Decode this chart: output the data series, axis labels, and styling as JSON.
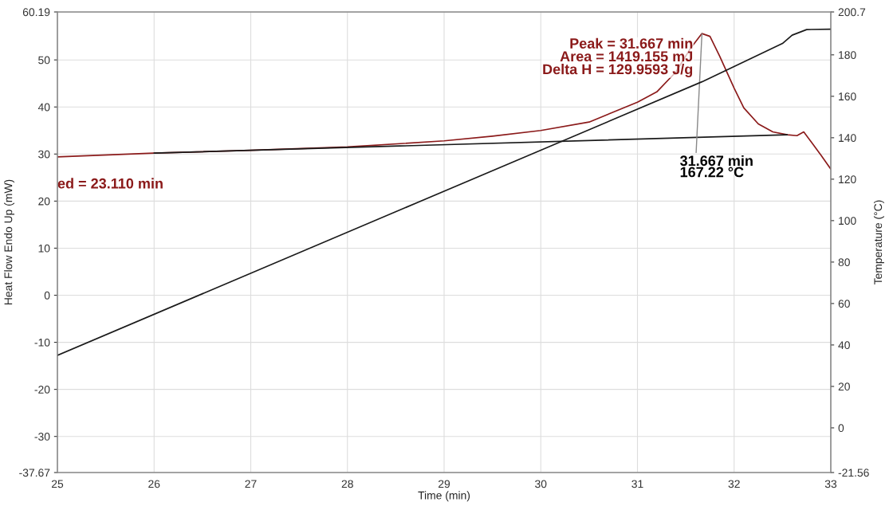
{
  "chart_data": {
    "type": "line",
    "xlabel": "Time (min)",
    "ylabel": "Heat Flow Endo Up (mW)",
    "y2label": "Temperature (°C)",
    "xlim": [
      25,
      33
    ],
    "xticks": [
      25,
      26,
      27,
      28,
      29,
      30,
      31,
      32,
      33
    ],
    "ylim": [
      -37.67,
      60.19
    ],
    "yticks": [
      -37.67,
      -30,
      -20,
      -10,
      0,
      10,
      20,
      30,
      40,
      50,
      60.19
    ],
    "y2lim": [
      -21.56,
      200.7
    ],
    "y2ticks": [
      -21.56,
      0,
      20,
      40,
      60,
      80,
      100,
      120,
      140,
      160,
      180,
      200.7
    ],
    "grid": true,
    "series": [
      {
        "color": "#8b1a1a",
        "x": [
          25,
          26,
          27,
          28,
          29,
          29.5,
          30,
          30.5,
          31,
          31.2,
          31.4,
          31.55,
          31.667,
          31.75,
          31.85,
          32,
          32.1,
          32.25,
          32.4,
          32.55,
          32.65,
          32.72,
          32.8,
          32.9,
          33
        ],
        "values": [
          29.4,
          30.2,
          30.8,
          31.5,
          32.8,
          33.8,
          35,
          36.8,
          41,
          43.2,
          47.5,
          52.5,
          55.6,
          55,
          50.8,
          44,
          39.8,
          36.4,
          34.7,
          34.1,
          33.9,
          34.7,
          32.5,
          29.7,
          26.8
        ]
      },
      {
        "color": "#1a1a1a",
        "axis": "y2",
        "x": [
          25,
          31.667,
          32.5,
          32.6,
          32.75,
          33
        ],
        "values": [
          35,
          167,
          185.5,
          189.5,
          192.2,
          192.4
        ]
      },
      {
        "color": "#1a1a1a",
        "x": [
          26,
          32.55
        ],
        "values": [
          30.2,
          34.1
        ]
      }
    ],
    "annotations": [
      {
        "text": "Peak = 31.667 min\nArea = 1419.155 mJ\nDelta H = 129.9593 J/g",
        "x": 31.667,
        "y": 55.6
      },
      "ed = 23.110 min",
      {
        "text": "31.667 min\n167.22 °C",
        "x": 31.667,
        "y": 55.6
      }
    ]
  }
}
